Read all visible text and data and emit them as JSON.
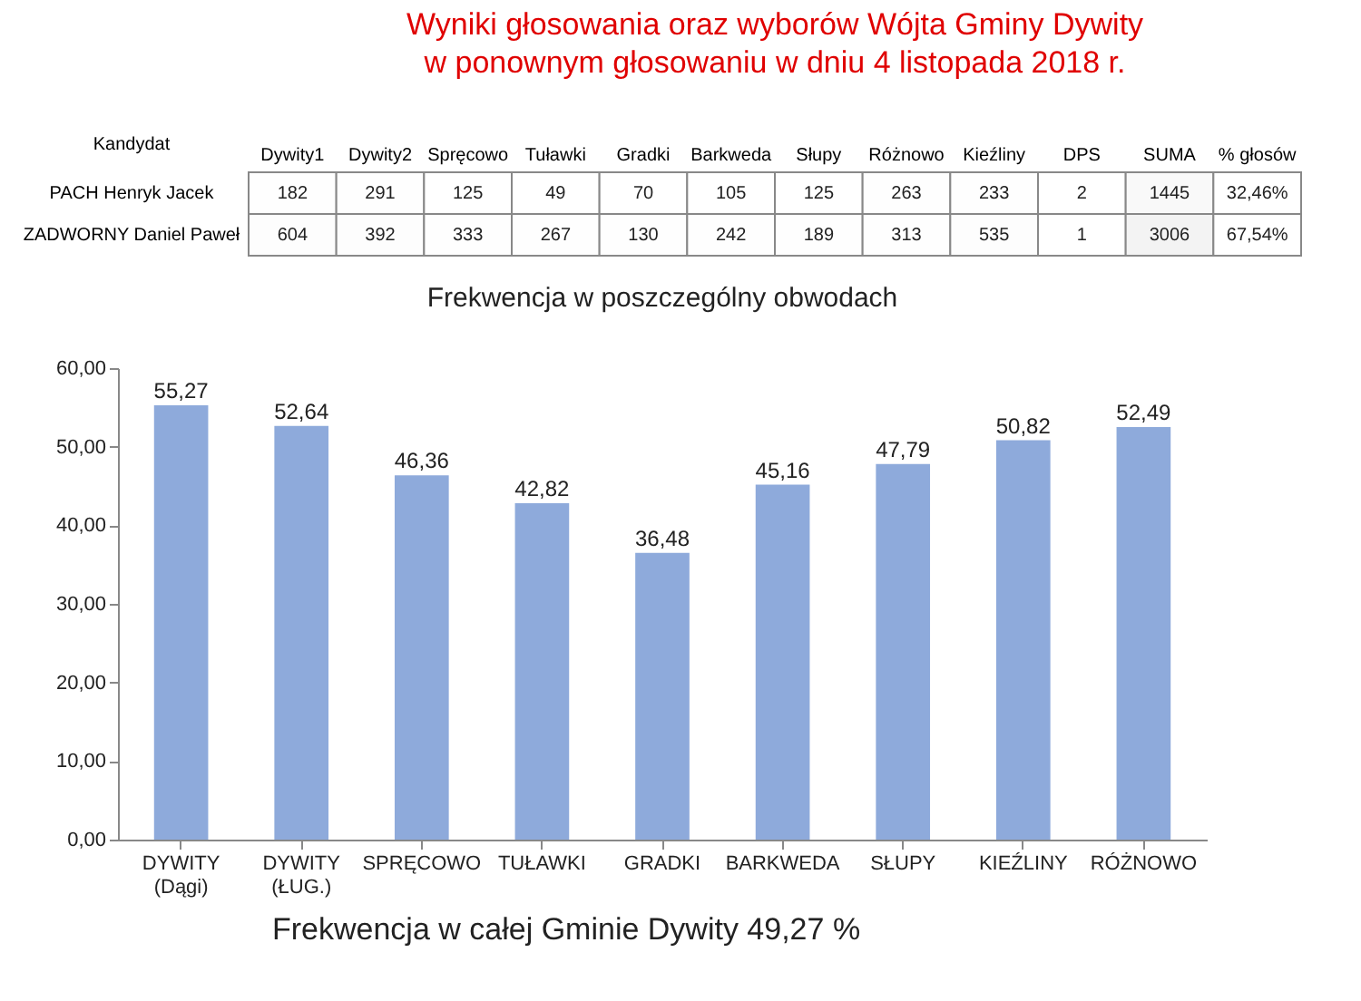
{
  "chart_data": [
    {
      "type": "heatmap",
      "title": "Wyniki głosowania oraz wyborów Wójta Gminy Dywity",
      "subtitle": "w ponownym głosowaniu w dniu 4 listopada 2018 r.",
      "ylabel": "Kandydat",
      "categories": [
        "Dywity1",
        "Dywity2",
        "Spręcowo",
        "Tuławki",
        "Gradki",
        "Barkweda",
        "Słupy",
        "Różnowo",
        "Kieźliny",
        "DPS",
        "SUMA",
        "% głosów"
      ],
      "y_categories": [
        "PACH Henryk Jacek",
        "ZADWORNY Daniel Paweł"
      ],
      "cells": [
        [
          182,
          291,
          125,
          49,
          70,
          105,
          125,
          263,
          233,
          2,
          1445,
          32.46
        ],
        [
          604,
          392,
          333,
          267,
          130,
          242,
          189,
          313,
          535,
          1,
          3006,
          67.54
        ]
      ],
      "cell_labels": [
        [
          "182",
          "291",
          "125",
          "49",
          "70",
          "105",
          "125",
          "263",
          "233",
          "2",
          "1445",
          "32,46%"
        ],
        [
          "604",
          "392",
          "333",
          "267",
          "130",
          "242",
          "189",
          "313",
          "535",
          "1",
          "3006",
          "67,54%"
        ]
      ]
    },
    {
      "type": "bar",
      "title": "Frekwencja w poszczególny obwodach",
      "categories": [
        "DYWITY\n(Dągi)",
        "DYWITY\n(ŁUG.)",
        "SPRĘCOWO",
        "TUŁAWKI",
        "GRADKI",
        "BARKWEDA",
        "SŁUPY",
        "KIEŹLINY",
        "RÓŻNOWO"
      ],
      "values": [
        55.27,
        52.64,
        46.36,
        42.82,
        36.48,
        45.16,
        47.79,
        50.82,
        52.49
      ],
      "value_labels": [
        "55,27",
        "52,64",
        "46,36",
        "42,82",
        "36,48",
        "45,16",
        "47,79",
        "50,82",
        "52,49"
      ],
      "color": "#8eaadb",
      "ylim": [
        0,
        60
      ],
      "yticks": [
        {
          "value": 0,
          "label": "0,00"
        },
        {
          "value": 10,
          "label": "10,00"
        },
        {
          "value": 20,
          "label": "20,00"
        },
        {
          "value": 30,
          "label": "30,00"
        },
        {
          "value": 40,
          "label": "40,00"
        },
        {
          "value": 50,
          "label": "50,00"
        },
        {
          "value": 60,
          "label": "60,00"
        }
      ],
      "annotations": [
        "Frekwencja w całej Gminie Dywity 49,27 %"
      ]
    }
  ]
}
